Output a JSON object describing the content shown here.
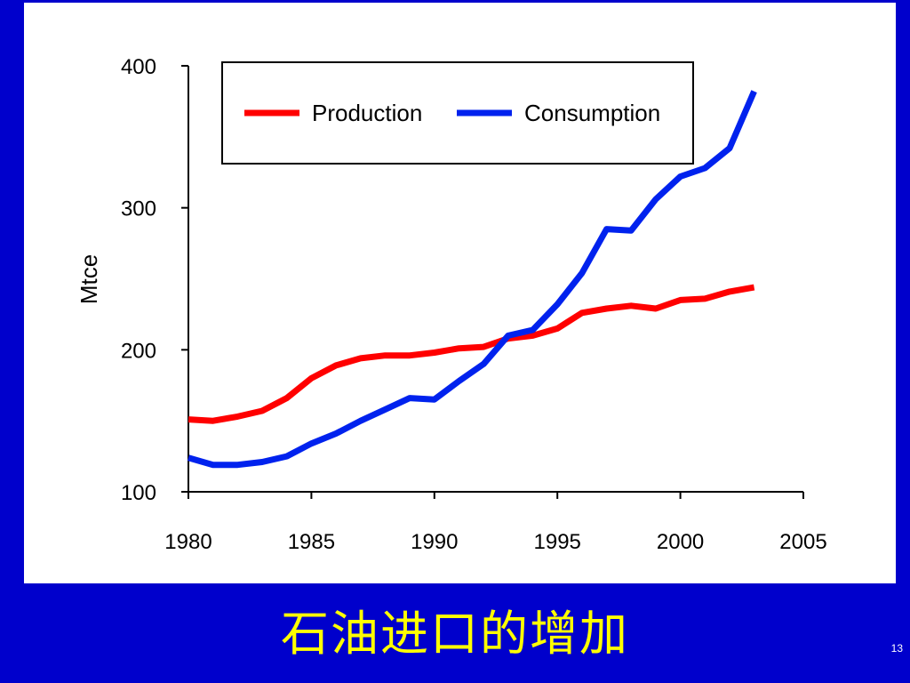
{
  "slide": {
    "title": "石油进口的增加",
    "page_number": "13",
    "background_color": "#0000cc",
    "panel_color": "#ffffff",
    "title_color": "#ffff00"
  },
  "chart_data": {
    "type": "line",
    "title": "",
    "xlabel": "",
    "ylabel": "Mtce",
    "xlim": [
      1980,
      2005
    ],
    "ylim": [
      100,
      400
    ],
    "x_ticks": [
      1980,
      1985,
      1990,
      1995,
      2000,
      2005
    ],
    "y_ticks": [
      100,
      200,
      300,
      400
    ],
    "grid": false,
    "legend_position": "top",
    "x": [
      1980,
      1981,
      1982,
      1983,
      1984,
      1985,
      1986,
      1987,
      1988,
      1989,
      1990,
      1991,
      1992,
      1993,
      1994,
      1995,
      1996,
      1997,
      1998,
      1999,
      2000,
      2001,
      2002,
      2003
    ],
    "series": [
      {
        "name": "Production",
        "color": "#ff0000",
        "values": [
          151,
          150,
          153,
          157,
          166,
          180,
          189,
          194,
          196,
          196,
          198,
          201,
          202,
          208,
          210,
          215,
          226,
          229,
          231,
          229,
          235,
          236,
          241,
          244
        ]
      },
      {
        "name": "Consumption",
        "color": "#0022ee",
        "values": [
          124,
          119,
          119,
          121,
          125,
          134,
          141,
          150,
          158,
          166,
          165,
          178,
          190,
          210,
          214,
          232,
          254,
          285,
          284,
          306,
          322,
          328,
          342,
          382
        ]
      }
    ]
  }
}
